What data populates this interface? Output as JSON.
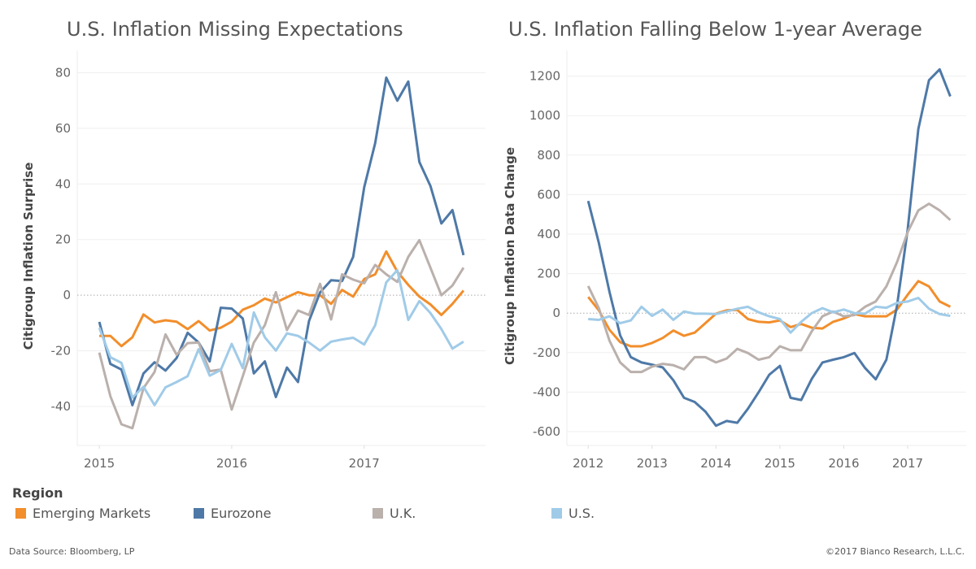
{
  "chart_data": [
    {
      "type": "line",
      "title": "U.S. Inflation Missing Expectations",
      "xlabel": "",
      "ylabel": "Citigroup Inflation Surprise",
      "x_ticks": [
        "2015",
        "2016",
        "2017"
      ],
      "y_ticks": [
        80,
        60,
        40,
        20,
        0,
        -20,
        -40
      ],
      "ylim": [
        -54,
        88
      ],
      "xlim": [
        "2014-11",
        "2017-12"
      ],
      "grid": true,
      "zero_line": "dotted",
      "x_start": "2015-01",
      "x_step_months": 1,
      "series": [
        {
          "name": "Emerging Markets",
          "values": [
            -14.6,
            -14.6,
            -18.3,
            -15.1,
            -6.9,
            -9.8,
            -9,
            -9.5,
            -12.2,
            -9.3,
            -12.7,
            -11.7,
            -9.5,
            -5.2,
            -3.6,
            -1.2,
            -2.6,
            -0.7,
            1.1,
            0,
            0,
            -3.1,
            1.9,
            -0.5,
            5.8,
            7.5,
            15.7,
            8.5,
            3.7,
            -0.5,
            -3.3,
            -7.1,
            -3.1,
            1.7
          ]
        },
        {
          "name": "Eurozone",
          "values": [
            -9.6,
            -24.7,
            -26.7,
            -39.5,
            -28.1,
            -24.1,
            -27.1,
            -22.6,
            -13.5,
            -17,
            -23.8,
            -4.5,
            -4.8,
            -8.4,
            -28.1,
            -23.8,
            -36.6,
            -26,
            -31.2,
            -9.3,
            1,
            5.4,
            5.1,
            13.8,
            38.8,
            54.7,
            78.2,
            69.9,
            76.8,
            47.9,
            39.3,
            25.8,
            30.6,
            14.4
          ]
        },
        {
          "name": "U.K.",
          "values": [
            -20.6,
            -36.3,
            -46.4,
            -47.8,
            -33.4,
            -27.6,
            -14.1,
            -21.4,
            -17.2,
            -17,
            -27.3,
            -26.7,
            -41.1,
            -29.1,
            -17,
            -10.8,
            1.1,
            -12.5,
            -5.5,
            -7.1,
            4.1,
            -8.7,
            7.5,
            5.6,
            4.3,
            10.9,
            7.5,
            4.8,
            13.8,
            19.8,
            9.9,
            0,
            3.5,
            9.9
          ]
        },
        {
          "name": "U.S.",
          "values": [
            -11.7,
            -22.3,
            -24.3,
            -36.8,
            -32.9,
            -39.5,
            -33.1,
            -31.2,
            -29.1,
            -19.4,
            -28.9,
            -26.9,
            -17.5,
            -26.2,
            -6.2,
            -15.1,
            -19.9,
            -13.7,
            -14.6,
            -17,
            -19.9,
            -16.7,
            -15.9,
            -15.3,
            -17.7,
            -10.8,
            4.6,
            9,
            -8.9,
            -2.1,
            -6.4,
            -12.2,
            -19.2,
            -16.7
          ]
        }
      ]
    },
    {
      "type": "line",
      "title": "U.S. Inflation Falling Below 1-year Average",
      "xlabel": "",
      "ylabel": "Citigroup Inflation Data Change",
      "x_ticks": [
        "2012",
        "2013",
        "2014",
        "2015",
        "2016",
        "2017"
      ],
      "y_ticks": [
        1200,
        1000,
        800,
        600,
        400,
        200,
        0,
        -200,
        -400,
        -600
      ],
      "ylim": [
        -670,
        1330
      ],
      "xlim": [
        "2011-09",
        "2017-12"
      ],
      "grid": true,
      "zero_line": "dotted",
      "x_start": "2012-01",
      "x_step_months": 2,
      "series": [
        {
          "name": "Emerging Markets",
          "values": [
            82,
            14,
            -85,
            -147,
            -168,
            -168,
            -151,
            -126,
            -88,
            -115,
            -99,
            -51,
            -3,
            14,
            16,
            -30,
            -44,
            -47,
            -37,
            -71,
            -55,
            -74,
            -78,
            -44,
            -27,
            -5,
            -16,
            -16,
            -16,
            18,
            93,
            162,
            135,
            59,
            32
          ]
        },
        {
          "name": "Eurozone",
          "values": [
            568,
            355,
            107,
            -113,
            -223,
            -250,
            -261,
            -275,
            -340,
            -429,
            -450,
            -498,
            -570,
            -546,
            -555,
            -484,
            -401,
            -312,
            -267,
            -429,
            -440,
            -333,
            -250,
            -236,
            -223,
            -202,
            -278,
            -335,
            -236,
            38,
            423,
            932,
            1179,
            1234,
            1097
          ]
        },
        {
          "name": "U.K.",
          "values": [
            137,
            25,
            -140,
            -250,
            -298,
            -298,
            -271,
            -257,
            -264,
            -285,
            -223,
            -223,
            -250,
            -230,
            -181,
            -202,
            -236,
            -223,
            -168,
            -188,
            -188,
            -92,
            -16,
            8,
            -16,
            -10,
            32,
            59,
            135,
            258,
            410,
            520,
            554,
            520,
            471
          ]
        },
        {
          "name": "U.S.",
          "values": [
            -30,
            -34,
            -16,
            -51,
            -37,
            32,
            -14,
            18,
            -34,
            8,
            -3,
            -3,
            -5,
            8,
            22,
            32,
            4,
            -16,
            -30,
            -99,
            -44,
            0,
            25,
            4,
            18,
            0,
            -3,
            32,
            27,
            52,
            59,
            77,
            22,
            -5,
            -14
          ]
        }
      ]
    }
  ],
  "colors": {
    "Emerging Markets": "#F28E2B",
    "Eurozone": "#4E79A7",
    "U.K.": "#BAB0AC",
    "U.S.": "#A0CBE8"
  },
  "legend": {
    "title": "Region",
    "items": [
      "Emerging Markets",
      "Eurozone",
      "U.K.",
      "U.S."
    ],
    "placement": "bottom"
  },
  "footer": {
    "source": "Data Source: Bloomberg, LP",
    "copyright": "©2017 Bianco Research, L.L.C."
  }
}
